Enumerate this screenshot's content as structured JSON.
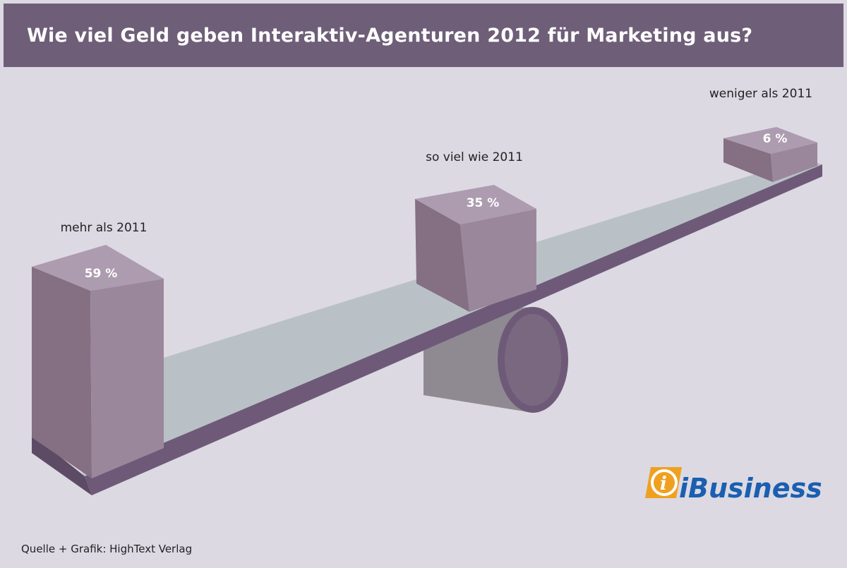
{
  "chart_data": {
    "type": "bar",
    "title": "Wie viel Geld geben Interaktiv-Agenturen 2012 für Marketing aus?",
    "categories": [
      "mehr als 2011",
      "so viel wie 2011",
      "weniger als 2011"
    ],
    "values": [
      59,
      35,
      6
    ],
    "value_labels": [
      "59 %",
      "35 %",
      "6 %"
    ],
    "unit": "%",
    "style": "3D seesaw infographic"
  },
  "source": "Quelle + Grafik: HighText Verlag",
  "logo": {
    "text": "iBusiness",
    "colors": {
      "orange": "#f0a020",
      "blue": "#1a5fb0"
    }
  },
  "colors": {
    "header": "#6e5e78",
    "background": "#dcd9e3",
    "block": "#9b879b",
    "plank": "#b9c1c7",
    "edge": "#6e5a78"
  }
}
